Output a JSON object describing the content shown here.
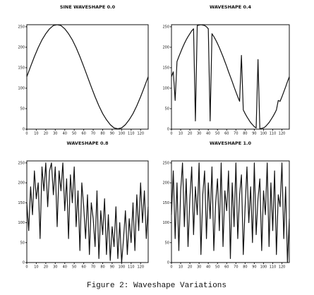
{
  "chart_data": [
    {
      "type": "line",
      "title": "SINE WAVESHAPE 0.0",
      "color": "#111111",
      "x": [
        0,
        4,
        8,
        12,
        16,
        20,
        24,
        28,
        32,
        36,
        40,
        44,
        48,
        52,
        56,
        60,
        64,
        68,
        72,
        76,
        80,
        84,
        88,
        92,
        96,
        100,
        104,
        108,
        112,
        116,
        120,
        124,
        128
      ],
      "values": [
        128,
        153,
        177,
        199,
        218,
        233,
        245,
        253,
        255,
        253,
        245,
        233,
        218,
        199,
        177,
        153,
        128,
        103,
        79,
        57,
        38,
        23,
        11,
        3,
        1,
        3,
        11,
        23,
        38,
        57,
        79,
        103,
        128
      ],
      "xlim": [
        0,
        128
      ],
      "ylim": [
        0,
        255
      ],
      "xticks": [
        0,
        10,
        20,
        30,
        40,
        50,
        60,
        70,
        80,
        90,
        100,
        110,
        120
      ],
      "yticks": [
        0,
        50,
        100,
        150,
        200,
        250
      ]
    },
    {
      "type": "line",
      "title": "WAVESHAPE 0.4",
      "color": "#111111",
      "x": [
        0,
        2,
        4,
        6,
        8,
        10,
        12,
        14,
        16,
        18,
        20,
        22,
        24,
        26,
        28,
        30,
        32,
        34,
        36,
        38,
        40,
        42,
        44,
        46,
        48,
        50,
        52,
        54,
        56,
        58,
        60,
        62,
        64,
        66,
        68,
        70,
        72,
        74,
        76,
        78,
        80,
        82,
        84,
        86,
        88,
        90,
        92,
        94,
        96,
        98,
        100,
        102,
        104,
        106,
        108,
        110,
        112,
        114,
        116,
        118,
        120,
        122,
        124,
        126,
        128
      ],
      "values": [
        128,
        140,
        70,
        165,
        177,
        188,
        199,
        209,
        218,
        226,
        233,
        240,
        245,
        20,
        253,
        254,
        255,
        254,
        253,
        250,
        245,
        20,
        233,
        226,
        218,
        209,
        199,
        188,
        177,
        165,
        153,
        140,
        128,
        116,
        103,
        91,
        79,
        68,
        180,
        47,
        38,
        30,
        23,
        16,
        11,
        6,
        3,
        170,
        1,
        2,
        3,
        6,
        11,
        16,
        23,
        30,
        38,
        47,
        70,
        68,
        79,
        91,
        103,
        116,
        128
      ],
      "xlim": [
        0,
        128
      ],
      "ylim": [
        0,
        255
      ],
      "xticks": [
        0,
        10,
        20,
        30,
        40,
        50,
        60,
        70,
        80,
        90,
        100,
        110,
        120
      ],
      "yticks": [
        0,
        50,
        100,
        150,
        200,
        250
      ]
    },
    {
      "type": "line",
      "title": "WAVESHAPE 0.8",
      "color": "#111111",
      "x": [
        0,
        2,
        4,
        6,
        8,
        10,
        12,
        14,
        16,
        18,
        20,
        22,
        24,
        26,
        28,
        30,
        32,
        34,
        36,
        38,
        40,
        42,
        44,
        46,
        48,
        50,
        52,
        54,
        56,
        58,
        60,
        62,
        64,
        66,
        68,
        70,
        72,
        74,
        76,
        78,
        80,
        82,
        84,
        86,
        88,
        90,
        92,
        94,
        96,
        98,
        100,
        102,
        104,
        106,
        108,
        110,
        112,
        114,
        116,
        118,
        120,
        122,
        124,
        126,
        128
      ],
      "values": [
        150,
        80,
        190,
        120,
        230,
        160,
        200,
        60,
        240,
        180,
        250,
        140,
        230,
        250,
        170,
        240,
        90,
        230,
        180,
        250,
        130,
        210,
        60,
        220,
        150,
        240,
        90,
        180,
        30,
        200,
        140,
        60,
        170,
        20,
        150,
        110,
        40,
        180,
        10,
        130,
        70,
        160,
        20,
        120,
        5,
        90,
        40,
        140,
        10,
        100,
        0,
        60,
        130,
        20,
        110,
        50,
        150,
        30,
        170,
        80,
        200,
        100,
        180,
        60,
        140
      ],
      "xlim": [
        0,
        128
      ],
      "ylim": [
        0,
        255
      ],
      "xticks": [
        0,
        10,
        20,
        30,
        40,
        50,
        60,
        70,
        80,
        90,
        100,
        110,
        120
      ],
      "yticks": [
        0,
        50,
        100,
        150,
        200,
        250
      ]
    },
    {
      "type": "line",
      "title": "WAVESHAPE 1.0",
      "color": "#111111",
      "x": [
        0,
        2,
        4,
        6,
        8,
        10,
        12,
        14,
        16,
        18,
        20,
        22,
        24,
        26,
        28,
        30,
        32,
        34,
        36,
        38,
        40,
        42,
        44,
        46,
        48,
        50,
        52,
        54,
        56,
        58,
        60,
        62,
        64,
        66,
        68,
        70,
        72,
        74,
        76,
        78,
        80,
        82,
        84,
        86,
        88,
        90,
        92,
        94,
        96,
        98,
        100,
        102,
        104,
        106,
        108,
        110,
        112,
        114,
        116,
        118,
        120,
        122,
        124,
        126,
        128
      ],
      "values": [
        120,
        230,
        60,
        200,
        30,
        180,
        250,
        90,
        210,
        40,
        160,
        240,
        70,
        190,
        120,
        250,
        20,
        170,
        230,
        60,
        200,
        110,
        240,
        30,
        150,
        210,
        80,
        250,
        40,
        180,
        130,
        230,
        10,
        200,
        90,
        250,
        60,
        170,
        220,
        20,
        140,
        240,
        100,
        190,
        50,
        250,
        70,
        160,
        210,
        30,
        180,
        120,
        250,
        40,
        200,
        80,
        230,
        20,
        170,
        140,
        250,
        60,
        190,
        0,
        110
      ],
      "xlim": [
        0,
        128
      ],
      "ylim": [
        0,
        255
      ],
      "xticks": [
        0,
        10,
        20,
        30,
        40,
        50,
        60,
        70,
        80,
        90,
        100,
        110,
        120
      ],
      "yticks": [
        0,
        50,
        100,
        150,
        200,
        250
      ]
    }
  ],
  "caption": "Figure 2: Waveshape Variations"
}
